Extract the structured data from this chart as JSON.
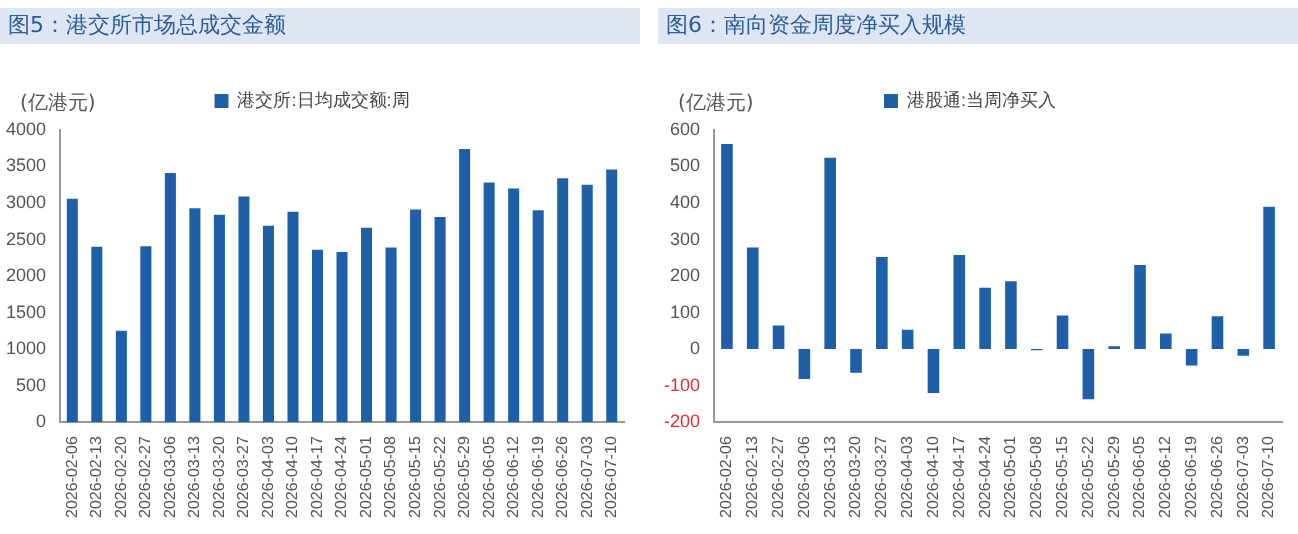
{
  "chart_data": [
    {
      "type": "bar",
      "title": "图5：港交所市场总成交金额",
      "ylabel": "(亿港元)",
      "categories": [
        "2026-02-06",
        "2026-02-13",
        "2026-02-20",
        "2026-02-27",
        "2026-03-06",
        "2026-03-13",
        "2026-03-20",
        "2026-03-27",
        "2026-04-03",
        "2026-04-10",
        "2026-04-17",
        "2026-04-24",
        "2026-05-01",
        "2026-05-08",
        "2026-05-15",
        "2026-05-22",
        "2026-05-29",
        "2026-06-05",
        "2026-06-12",
        "2026-06-19",
        "2026-06-26",
        "2026-07-03",
        "2026-07-10"
      ],
      "series": [
        {
          "name": "港交所:日均成交额:周",
          "color": "#1f5fa8",
          "values": [
            3060,
            2400,
            1250,
            2410,
            3410,
            2930,
            2840,
            3090,
            2690,
            2880,
            2360,
            2330,
            2660,
            2390,
            2910,
            2810,
            3740,
            3280,
            3200,
            2900,
            3340,
            3250,
            3460
          ]
        }
      ],
      "ylim": [
        0,
        4000
      ],
      "yticks": [
        0,
        500,
        1000,
        1500,
        2000,
        2500,
        3000,
        3500,
        4000
      ],
      "grid": false,
      "legend": "top"
    },
    {
      "type": "bar",
      "title": "图6：南向资金周度净买入规模",
      "ylabel": "(亿港元)",
      "categories": [
        "2026-02-06",
        "2026-02-13",
        "2026-02-27",
        "2026-03-06",
        "2026-03-13",
        "2026-03-20",
        "2026-03-27",
        "2026-04-03",
        "2026-04-10",
        "2026-04-17",
        "2026-04-24",
        "2026-05-01",
        "2026-05-08",
        "2026-05-15",
        "2026-05-22",
        "2026-05-29",
        "2026-06-05",
        "2026-06-12",
        "2026-06-19",
        "2026-06-26",
        "2026-07-03",
        "2026-07-10"
      ],
      "series": [
        {
          "name": "港股通:当周净买入",
          "color": "#1f5fa8",
          "values": [
            562,
            278,
            65,
            -82,
            524,
            -65,
            252,
            53,
            -120,
            258,
            168,
            186,
            -3,
            92,
            -137,
            8,
            230,
            43,
            -45,
            90,
            -18,
            390
          ]
        }
      ],
      "ylim": [
        -200,
        600
      ],
      "yticks": [
        -200,
        -100,
        0,
        100,
        200,
        300,
        400,
        500,
        600
      ],
      "grid": false,
      "legend": "top"
    }
  ]
}
